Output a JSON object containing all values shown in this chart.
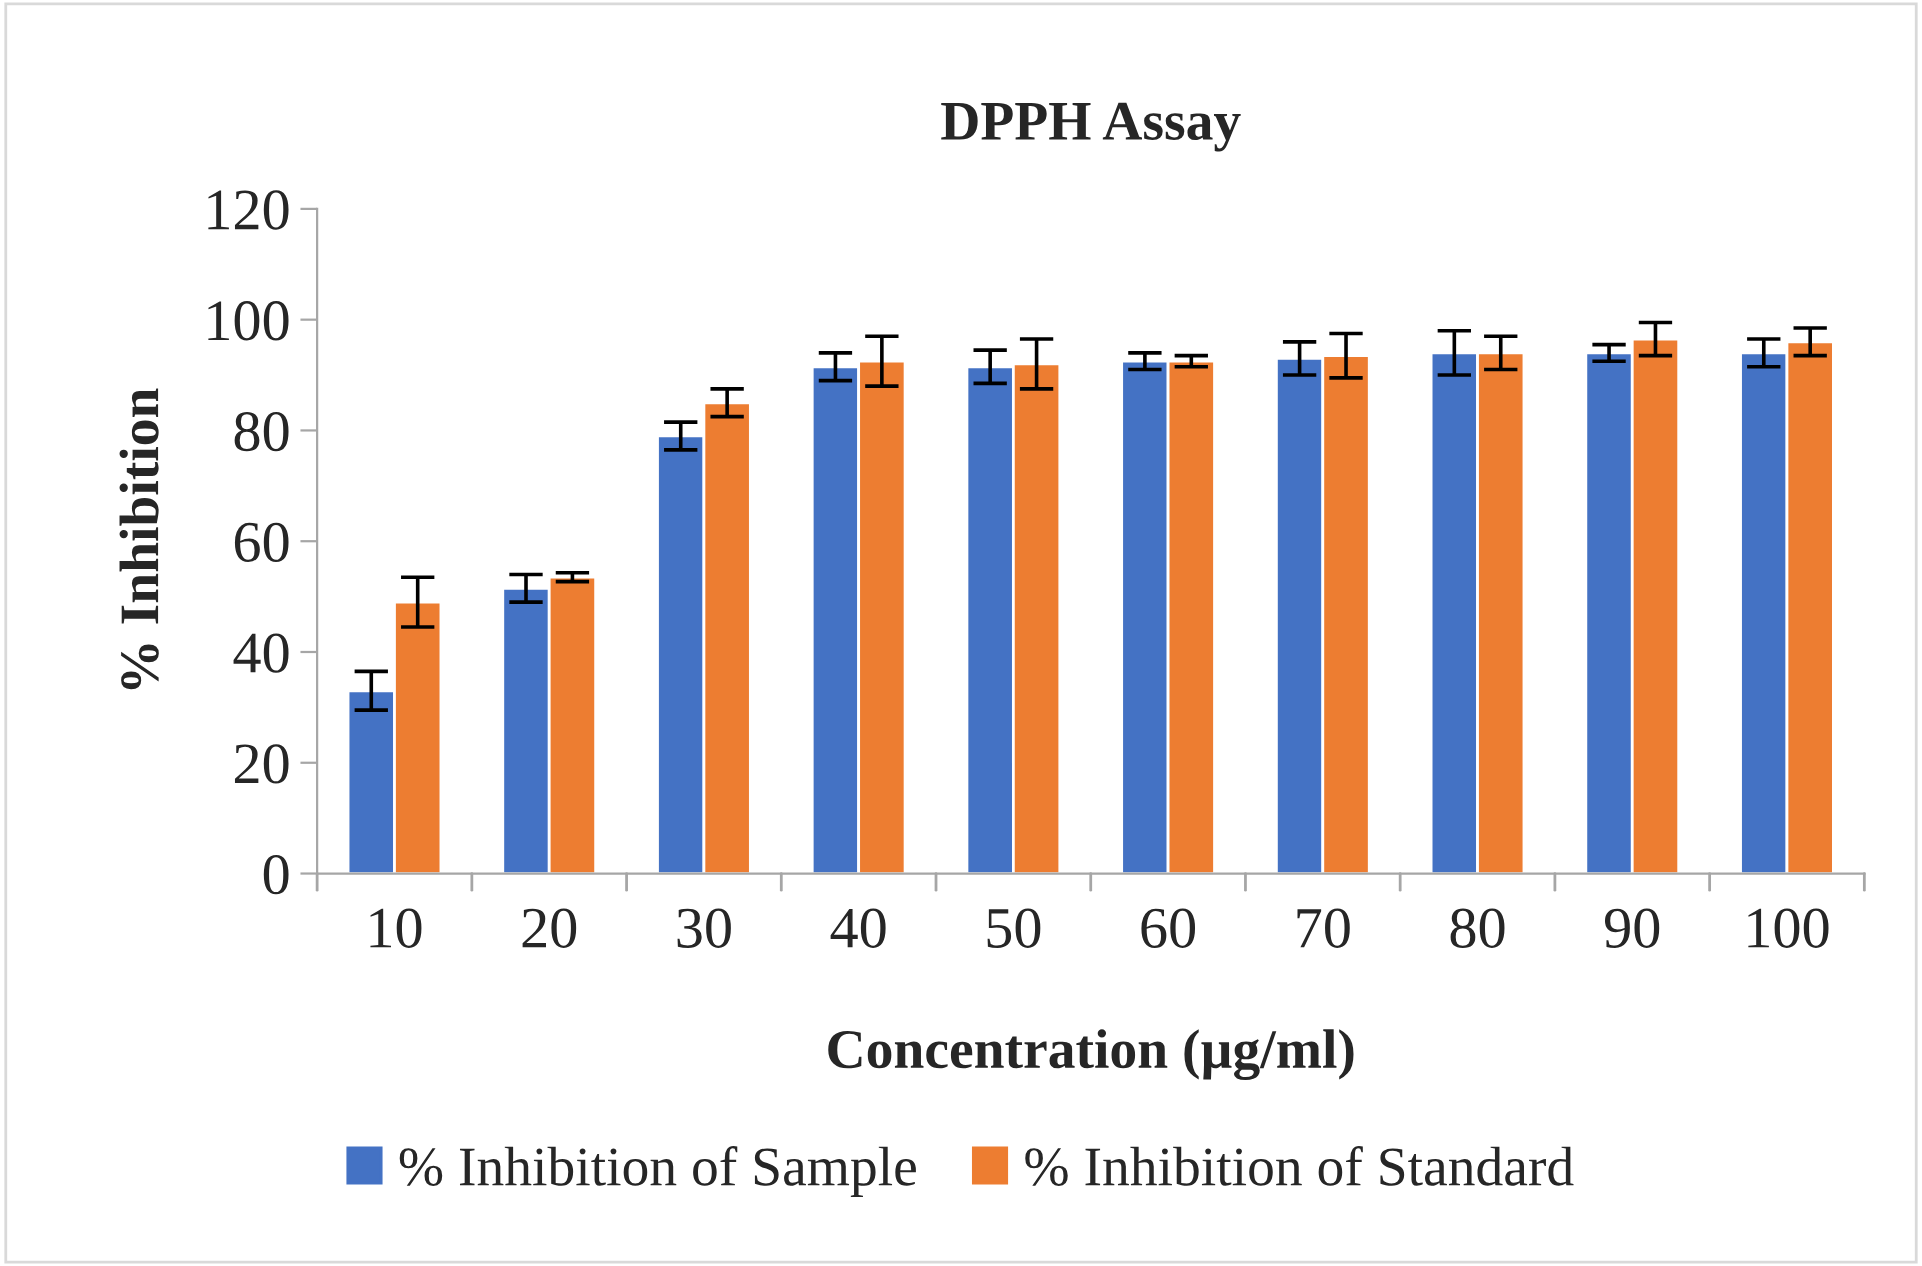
{
  "chart_data": {
    "type": "bar",
    "title": "DPPH Assay",
    "xlabel": "Concentration (µg/ml)",
    "ylabel": "% Inhibition",
    "categories": [
      "10",
      "20",
      "30",
      "40",
      "50",
      "60",
      "70",
      "80",
      "90",
      "100"
    ],
    "series": [
      {
        "name": "% Inhibition of Sample",
        "color": "#4472c4",
        "values": [
          33,
          51.5,
          79,
          91.5,
          91.5,
          92.5,
          93,
          94,
          94,
          94
        ],
        "errors": [
          3.5,
          2.5,
          2.5,
          2.5,
          3,
          1.5,
          3,
          4,
          1.5,
          2.5
        ]
      },
      {
        "name": "% Inhibition of Standard",
        "color": "#ed7d31",
        "values": [
          49,
          53.5,
          85,
          92.5,
          92,
          92.5,
          93.5,
          94,
          96.5,
          96
        ],
        "errors": [
          4.5,
          0.8,
          2.5,
          4.5,
          4.5,
          1,
          4,
          3,
          3,
          2.5
        ]
      }
    ],
    "ylim": [
      0,
      120
    ],
    "yticks": [
      0,
      20,
      40,
      60,
      80,
      100,
      120
    ],
    "grid": false,
    "legend": "bottom"
  }
}
